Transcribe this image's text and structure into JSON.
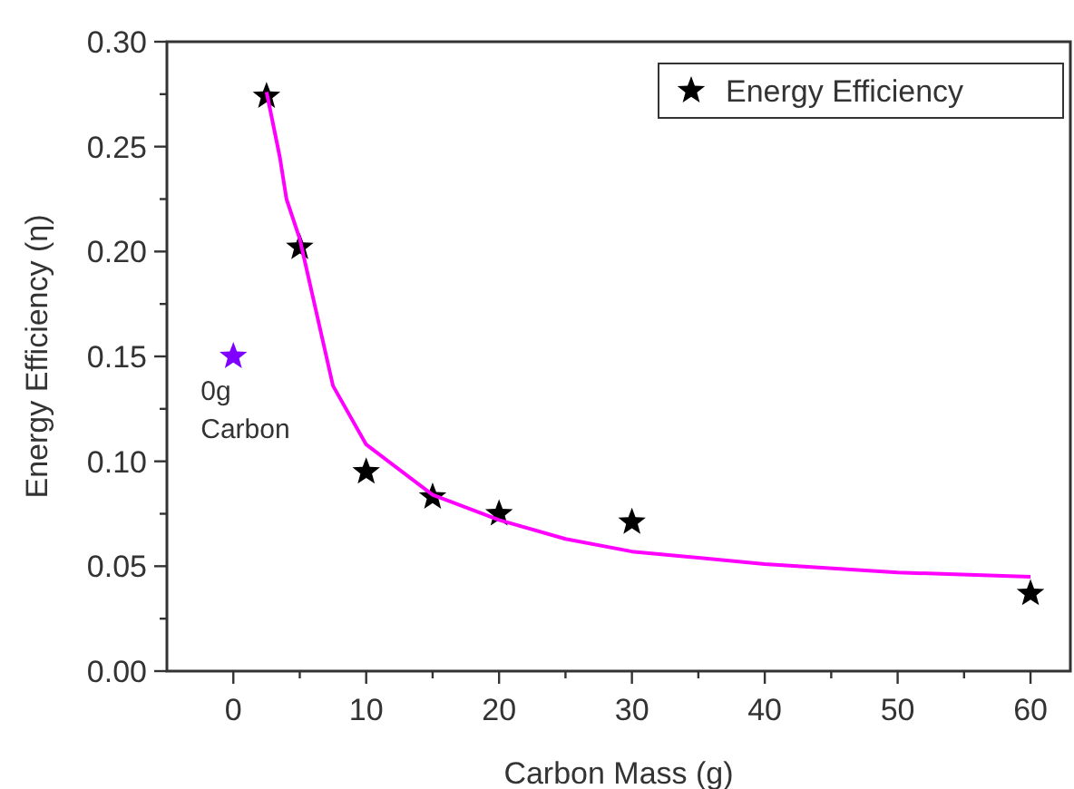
{
  "chart_data": {
    "type": "scatter",
    "xlabel": "Carbon Mass (g)",
    "ylabel": "Energy Efficiency (η)",
    "xlim": [
      -5,
      63
    ],
    "ylim": [
      0,
      0.3
    ],
    "xticks": [
      0,
      {
        "value": 5,
        "label": null
      },
      10,
      {
        "value": 15,
        "label": null
      },
      20,
      {
        "value": 25,
        "label": null
      },
      30,
      {
        "value": 35,
        "label": null
      },
      40,
      {
        "value": 45,
        "label": null
      },
      50,
      {
        "value": 55,
        "label": null
      },
      60
    ],
    "yticks": [
      "0.00",
      {
        "value": 0.025,
        "label": null
      },
      {
        "value": 0.05,
        "label": "0.05"
      },
      {
        "value": 0.075,
        "label": null
      },
      {
        "value": 0.1,
        "label": "0.10"
      },
      {
        "value": 0.125,
        "label": null
      },
      {
        "value": 0.15,
        "label": "0.15"
      },
      {
        "value": 0.175,
        "label": null
      },
      {
        "value": 0.2,
        "label": "0.20"
      },
      {
        "value": 0.225,
        "label": null
      },
      {
        "value": 0.25,
        "label": "0.25"
      },
      {
        "value": 0.275,
        "label": null
      },
      {
        "value": 0.3,
        "label": "0.30"
      }
    ],
    "marker": "star",
    "grid": false,
    "legend": "top right",
    "series": [
      {
        "name": "Energy Efficiency",
        "color": "#000000",
        "x": [
          2.5,
          5,
          10,
          15,
          20,
          30,
          60
        ],
        "values": [
          0.274,
          0.202,
          0.095,
          0.083,
          0.075,
          0.071,
          0.037
        ]
      },
      {
        "color": "#7f00ff",
        "x": [
          0
        ],
        "values": [
          0.15
        ]
      },
      {
        "type": "line",
        "color": "#ff00ff",
        "marker": "none",
        "x": [
          2.5,
          3.5,
          4,
          5,
          7.5,
          10,
          15,
          20,
          25,
          30,
          40,
          50,
          60
        ],
        "values": [
          0.276,
          0.245,
          0.225,
          0.206,
          0.136,
          0.108,
          0.084,
          0.072,
          0.063,
          0.057,
          0.051,
          0.047,
          0.045
        ]
      }
    ],
    "annotations": [
      {
        "text": "0g\nCarbon",
        "x": 0,
        "y": 0.15
      }
    ]
  }
}
